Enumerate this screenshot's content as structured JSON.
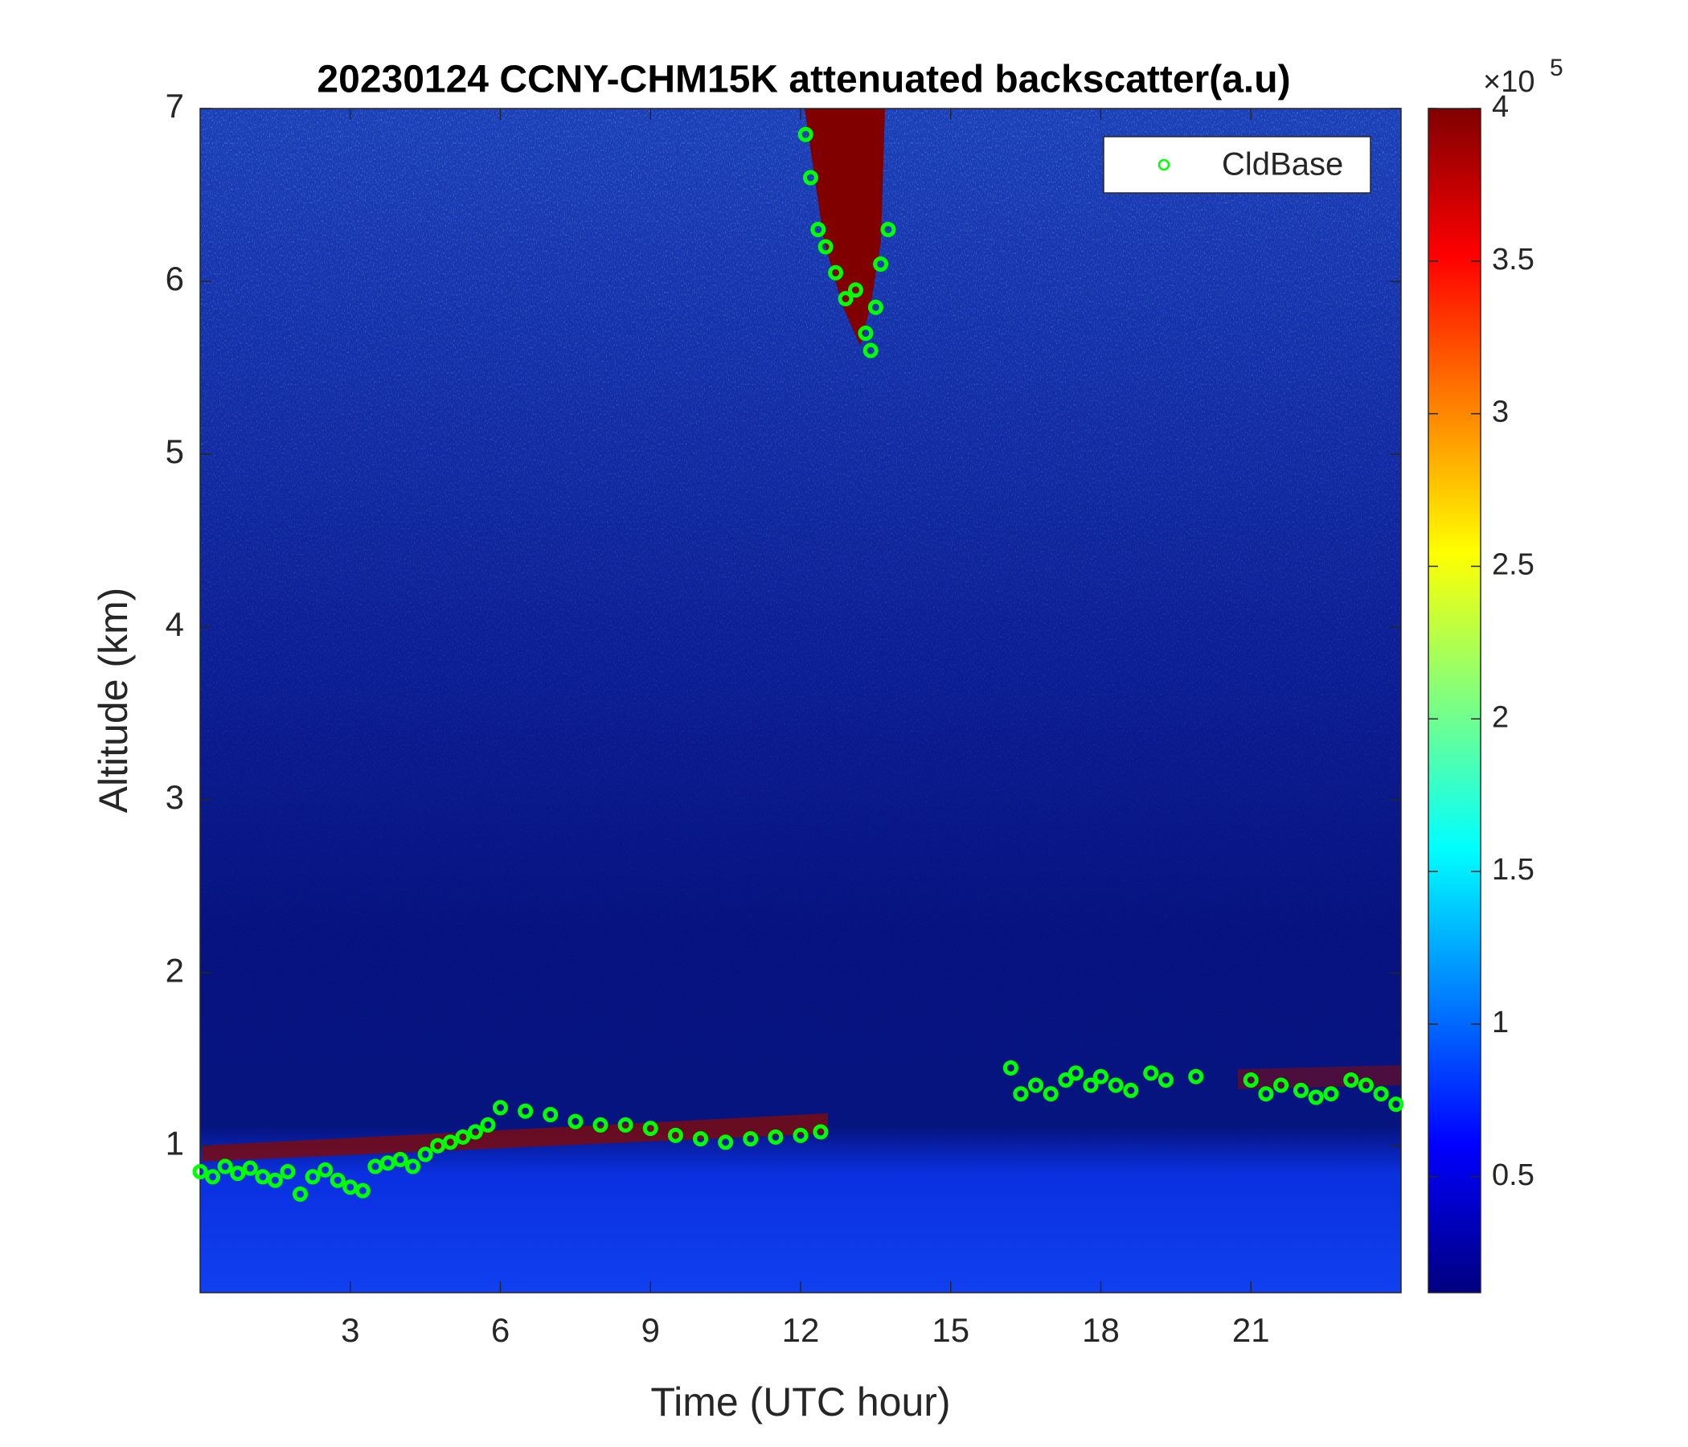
{
  "chart_data": {
    "type": "scatter",
    "title": "20230124 CCNY-CHM15K attenuated backscatter(a.u)",
    "xlabel": "Time (UTC hour)",
    "ylabel": "Altitude (km)",
    "xlim": [
      0,
      24
    ],
    "ylim": [
      0.15,
      7
    ],
    "xticks": [
      3,
      6,
      9,
      12,
      15,
      18,
      21
    ],
    "yticks": [
      1,
      2,
      3,
      4,
      5,
      6,
      7
    ],
    "legend": "northeast",
    "x": [
      0,
      0.25,
      0.5,
      0.75,
      1,
      1.25,
      1.5,
      1.75,
      2,
      2.25,
      2.5,
      2.75,
      3,
      3.25,
      3.5,
      3.75,
      4,
      4.25,
      4.5,
      4.75,
      5,
      5.25,
      5.5,
      5.75,
      6,
      6.5,
      7,
      7.5,
      8,
      8.5,
      9,
      9.5,
      10,
      10.5,
      11,
      11.5,
      12,
      12.4,
      12.1,
      12.2,
      12.35,
      12.5,
      12.7,
      12.9,
      13.1,
      13.3,
      13.4,
      13.5,
      13.6,
      13.75,
      16.2,
      16.4,
      16.7,
      17,
      17.3,
      17.5,
      17.8,
      18,
      18.3,
      18.6,
      19,
      19.3,
      19.9,
      21,
      21.3,
      21.6,
      22,
      22.3,
      22.6,
      23,
      23.3,
      23.6,
      23.9
    ],
    "series": [
      {
        "name": "CldBase",
        "color": "#00ff00",
        "values": [
          0.85,
          0.82,
          0.88,
          0.84,
          0.87,
          0.82,
          0.8,
          0.85,
          0.72,
          0.82,
          0.86,
          0.8,
          0.76,
          0.74,
          0.88,
          0.9,
          0.92,
          0.88,
          0.95,
          1.0,
          1.02,
          1.05,
          1.08,
          1.12,
          1.22,
          1.2,
          1.18,
          1.14,
          1.12,
          1.12,
          1.1,
          1.06,
          1.04,
          1.02,
          1.04,
          1.05,
          1.06,
          1.08,
          6.85,
          6.6,
          6.3,
          6.2,
          6.05,
          5.9,
          5.95,
          5.7,
          5.6,
          5.85,
          6.1,
          6.3,
          1.45,
          1.3,
          1.35,
          1.3,
          1.38,
          1.42,
          1.35,
          1.4,
          1.35,
          1.32,
          1.42,
          1.38,
          1.4,
          1.38,
          1.3,
          1.35,
          1.32,
          1.28,
          1.3,
          1.38,
          1.35,
          1.3,
          1.24
        ]
      }
    ],
    "colorbar": {
      "colormap": "jet",
      "clim": [
        0.12,
        4
      ],
      "ticks": [
        0.5,
        1,
        1.5,
        2,
        2.5,
        3,
        3.5,
        4
      ],
      "multiplier": "×10",
      "exponent": "5"
    }
  }
}
